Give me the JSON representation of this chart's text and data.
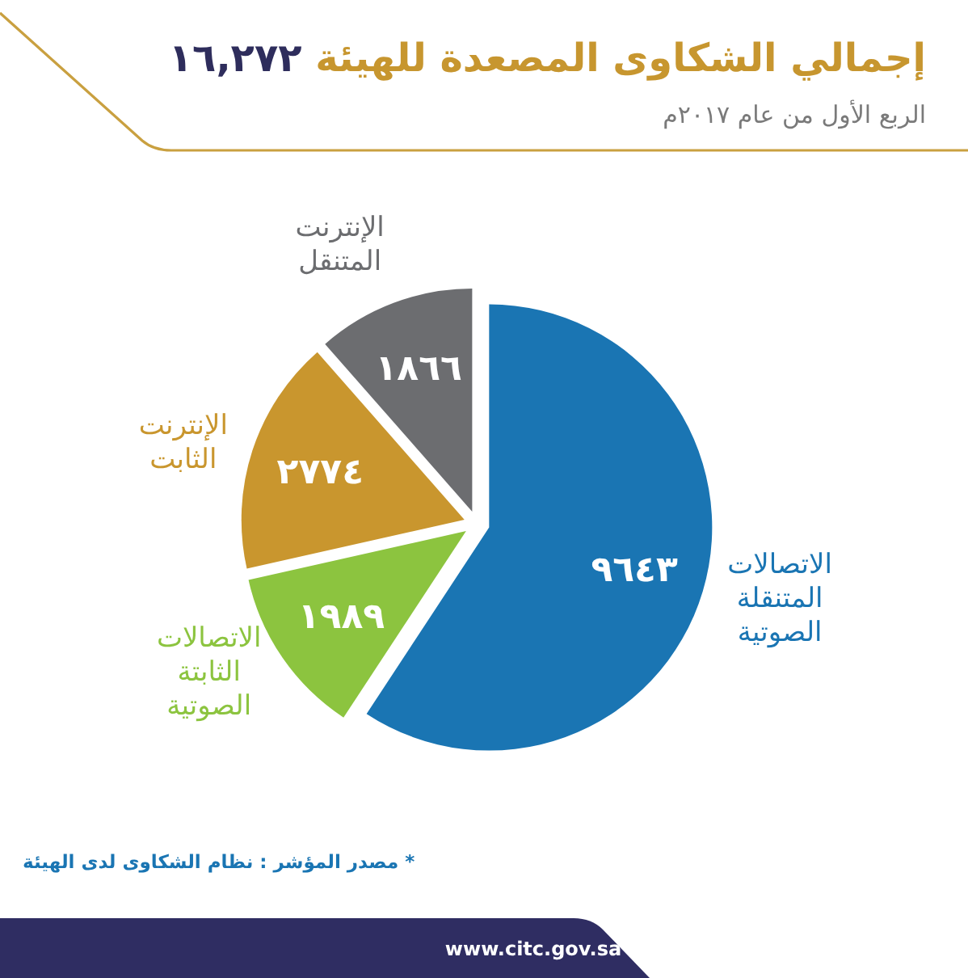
{
  "chart_data": {
    "type": "pie",
    "title": "إجمالي الشكاوى المصعدة للهيئة ١٦,٢٧٢",
    "subtitle": "الربع الأول من عام ٢٠١٧م",
    "categories": [
      "الاتصالات المتنقلة الصوتية",
      "الاتصالات الثابتة الصوتية",
      "الإنترنت الثابت",
      "الإنترنت المتنقل"
    ],
    "values": [
      9643,
      1989,
      2774,
      1866
    ],
    "value_labels": [
      "٩٦٤٣",
      "١٩٨٩",
      "٢٧٧٤",
      "١٨٦٦"
    ],
    "colors": [
      "#1a75b3",
      "#8cc43f",
      "#c9962e",
      "#6c6d70"
    ],
    "annotations": [
      "* مصدر المؤشر : نظام الشكاوى لدى الهيئة",
      "www.citc.gov.sa"
    ]
  }
}
